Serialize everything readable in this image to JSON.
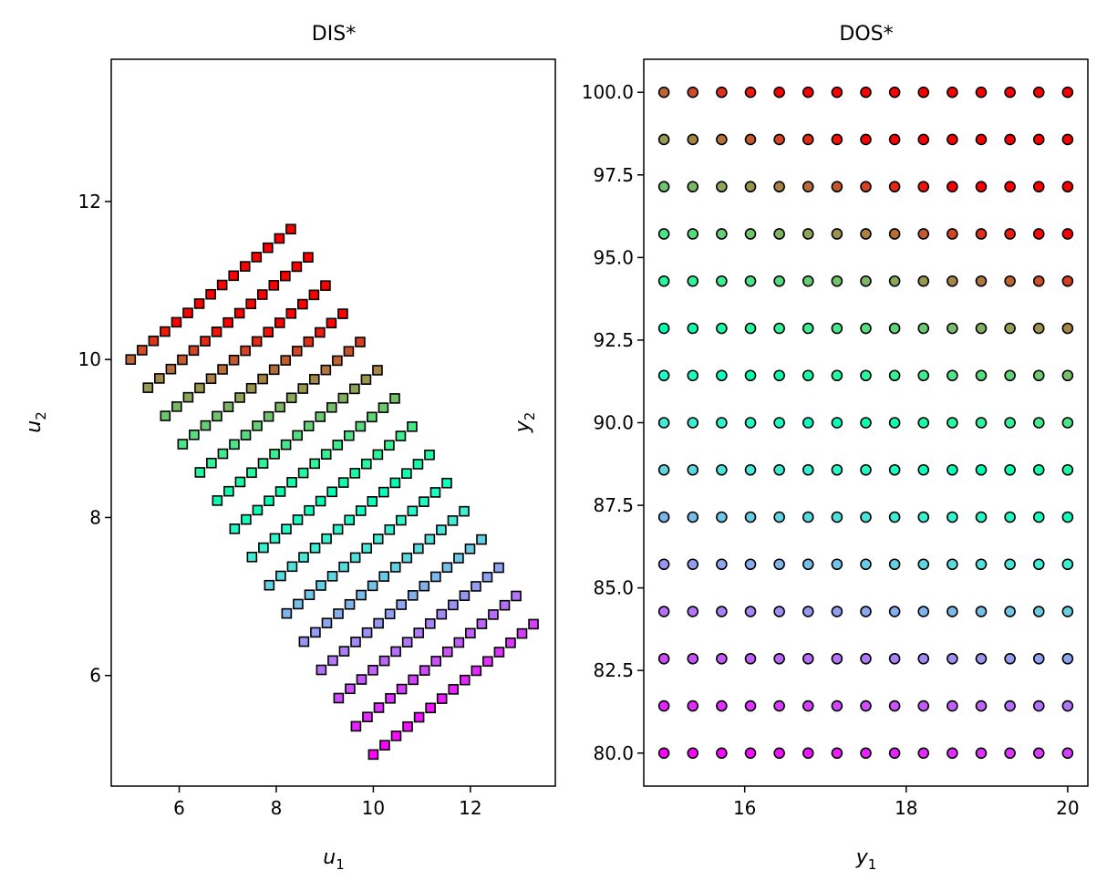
{
  "chart_data": [
    {
      "type": "scatter",
      "title": "DIS*",
      "xlabel": "u1",
      "ylabel": "u2",
      "xlim": [
        4.6,
        13.75
      ],
      "ylim": [
        4.6,
        13.8
      ],
      "xticks": [
        6,
        8,
        10,
        12
      ],
      "yticks": [
        6,
        8,
        10,
        12
      ],
      "marker": "square",
      "colormap": "rainbow",
      "grid": false,
      "grid_points": 15,
      "mapping_note": "u1 = 10 + 3.3*a - 3.3*b, u2 = 5 + 1.65*a + 3.3*b, a,b in [0,1]; color by y2 (b)"
    },
    {
      "type": "scatter",
      "title": "DOS*",
      "xlabel": "y1",
      "ylabel": "y2",
      "xlim": [
        14.75,
        20.25
      ],
      "ylim": [
        79.0,
        101.0
      ],
      "xticks": [
        16,
        18,
        20
      ],
      "yticks": [
        "80.0",
        "82.5",
        "85.0",
        "87.5",
        "90.0",
        "92.5",
        "95.0",
        "97.5",
        "100.0"
      ],
      "ytick_values": [
        80.0,
        82.5,
        85.0,
        87.5,
        90.0,
        92.5,
        95.0,
        97.5,
        100.0
      ],
      "x": [
        15,
        20
      ],
      "y": [
        80,
        100
      ],
      "marker": "circle",
      "colormap": "rainbow",
      "grid": false,
      "grid_points": 15
    }
  ]
}
